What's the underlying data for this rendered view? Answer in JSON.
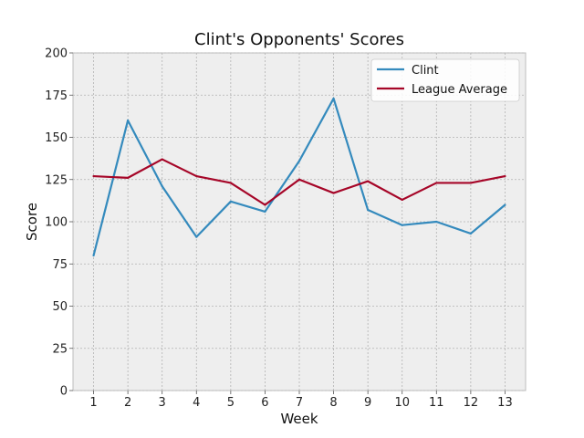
{
  "chart_data": {
    "type": "line",
    "title": "Clint's Opponents' Scores",
    "xlabel": "Week",
    "ylabel": "Score",
    "x": [
      1,
      2,
      3,
      4,
      5,
      6,
      7,
      8,
      9,
      10,
      11,
      12,
      13
    ],
    "xlim": [
      0.4,
      13.6
    ],
    "ylim": [
      0,
      200
    ],
    "yticks": [
      0,
      25,
      50,
      75,
      100,
      125,
      150,
      175,
      200
    ],
    "grid": true,
    "legend_position": "top-right",
    "series": [
      {
        "name": "Clint",
        "color": "#348abd",
        "values": [
          80,
          160,
          121,
          91,
          112,
          106,
          136,
          173,
          107,
          98,
          100,
          93,
          110
        ]
      },
      {
        "name": "League Average",
        "color": "#a60628",
        "values": [
          127,
          126,
          137,
          127,
          123,
          110,
          125,
          117,
          124,
          113,
          123,
          123,
          127
        ]
      }
    ],
    "colors": {
      "plot_background": "#eeeeee",
      "grid": "#b2b2b2",
      "axes_edge": "#bcbcbc",
      "legend_background": "#ffffff"
    }
  }
}
